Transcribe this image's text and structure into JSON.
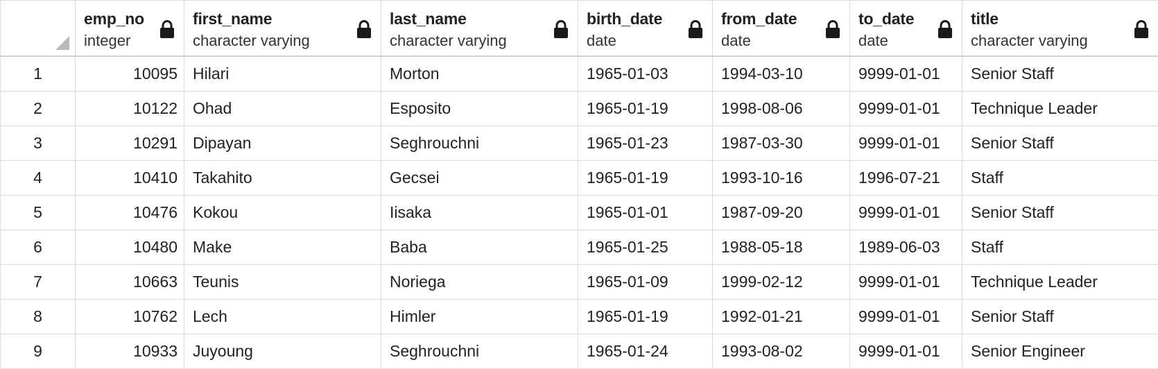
{
  "grid": {
    "columns": [
      {
        "name": "emp_no",
        "type": "integer"
      },
      {
        "name": "first_name",
        "type": "character varying"
      },
      {
        "name": "last_name",
        "type": "character varying"
      },
      {
        "name": "birth_date",
        "type": "date"
      },
      {
        "name": "from_date",
        "type": "date"
      },
      {
        "name": "to_date",
        "type": "date"
      },
      {
        "name": "title",
        "type": "character varying"
      }
    ],
    "rows": [
      {
        "n": "1",
        "emp_no": "10095",
        "first_name": "Hilari",
        "last_name": "Morton",
        "birth_date": "1965-01-03",
        "from_date": "1994-03-10",
        "to_date": "9999-01-01",
        "title": "Senior Staff"
      },
      {
        "n": "2",
        "emp_no": "10122",
        "first_name": "Ohad",
        "last_name": "Esposito",
        "birth_date": "1965-01-19",
        "from_date": "1998-08-06",
        "to_date": "9999-01-01",
        "title": "Technique Leader"
      },
      {
        "n": "3",
        "emp_no": "10291",
        "first_name": "Dipayan",
        "last_name": "Seghrouchni",
        "birth_date": "1965-01-23",
        "from_date": "1987-03-30",
        "to_date": "9999-01-01",
        "title": "Senior Staff"
      },
      {
        "n": "4",
        "emp_no": "10410",
        "first_name": "Takahito",
        "last_name": "Gecsei",
        "birth_date": "1965-01-19",
        "from_date": "1993-10-16",
        "to_date": "1996-07-21",
        "title": "Staff"
      },
      {
        "n": "5",
        "emp_no": "10476",
        "first_name": "Kokou",
        "last_name": "Iisaka",
        "birth_date": "1965-01-01",
        "from_date": "1987-09-20",
        "to_date": "9999-01-01",
        "title": "Senior Staff"
      },
      {
        "n": "6",
        "emp_no": "10480",
        "first_name": "Make",
        "last_name": "Baba",
        "birth_date": "1965-01-25",
        "from_date": "1988-05-18",
        "to_date": "1989-06-03",
        "title": "Staff"
      },
      {
        "n": "7",
        "emp_no": "10663",
        "first_name": "Teunis",
        "last_name": "Noriega",
        "birth_date": "1965-01-09",
        "from_date": "1999-02-12",
        "to_date": "9999-01-01",
        "title": "Technique Leader"
      },
      {
        "n": "8",
        "emp_no": "10762",
        "first_name": "Lech",
        "last_name": "Himler",
        "birth_date": "1965-01-19",
        "from_date": "1992-01-21",
        "to_date": "9999-01-01",
        "title": "Senior Staff"
      },
      {
        "n": "9",
        "emp_no": "10933",
        "first_name": "Juyoung",
        "last_name": "Seghrouchni",
        "birth_date": "1965-01-24",
        "from_date": "1993-08-02",
        "to_date": "9999-01-01",
        "title": "Senior Engineer"
      }
    ]
  }
}
